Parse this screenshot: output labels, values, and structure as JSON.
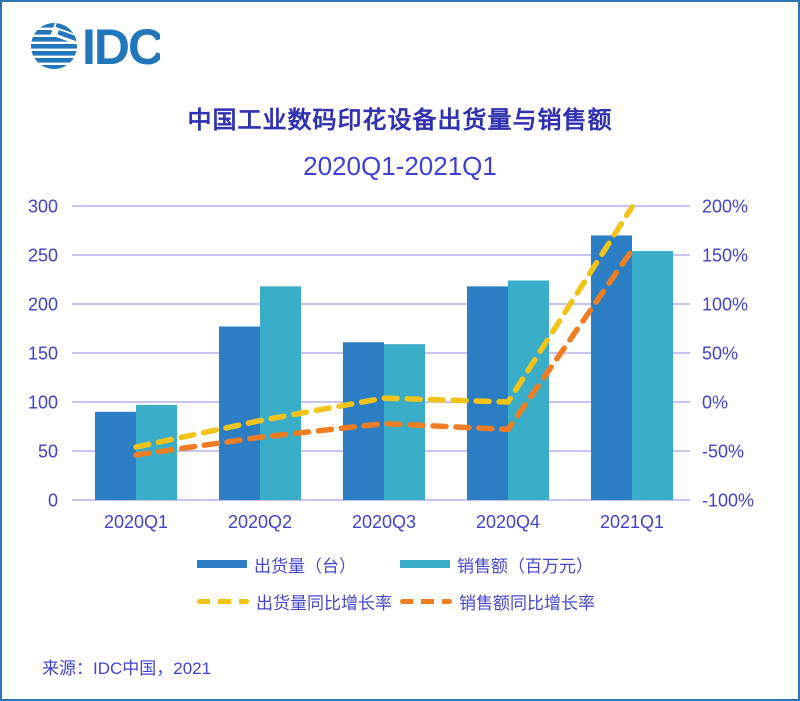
{
  "logo": {
    "text": "IDC",
    "color": "#2277bc"
  },
  "title": "中国工业数码印花设备出货量与销售额",
  "subtitle": "2020Q1-2021Q1",
  "source": "来源：IDC中国，2021",
  "colors": {
    "frame_border": "#2e75b6",
    "grid": "#b6b0ea",
    "axis_text": "#4242cf",
    "title_text": "#3030b0",
    "bar_shipments": "#2b7ec4",
    "bar_sales": "#3aadc8",
    "line_shipment_growth": "#f2c318",
    "line_sales_growth": "#ee7d23"
  },
  "chart_data": {
    "type": "combo bar+line (dual axis)",
    "categories": [
      "2020Q1",
      "2020Q2",
      "2020Q3",
      "2020Q4",
      "2021Q1"
    ],
    "series": [
      {
        "name": "出货量（台）",
        "type": "bar",
        "axis": "left",
        "color": "#2b7ec4",
        "values": [
          90,
          177,
          161,
          218,
          270
        ]
      },
      {
        "name": "销售额（百万元）",
        "type": "bar",
        "axis": "left",
        "color": "#3aadc8",
        "values": [
          97,
          218,
          159,
          224,
          254
        ]
      },
      {
        "name": "出货量同比增长率",
        "type": "dashed-line",
        "axis": "right",
        "color": "#f2c318",
        "values_pct": [
          -46,
          -19,
          4,
          0,
          199
        ]
      },
      {
        "name": "销售额同比增长率",
        "type": "dashed-line",
        "axis": "right",
        "color": "#ee7d23",
        "values_pct": [
          -54,
          -36,
          -22,
          -28,
          155
        ]
      }
    ],
    "left_axis": {
      "range": [
        0,
        300
      ],
      "ticks": [
        300,
        250,
        200,
        150,
        100,
        50,
        0
      ]
    },
    "right_axis": {
      "range": [
        -100,
        200
      ],
      "tick_labels": [
        "200%",
        "150%",
        "100%",
        "50%",
        "0%",
        "-50%",
        "-100%"
      ],
      "tick_values": [
        200,
        150,
        100,
        50,
        0,
        -50,
        -100
      ]
    },
    "grid": true,
    "legend_position": "bottom"
  }
}
